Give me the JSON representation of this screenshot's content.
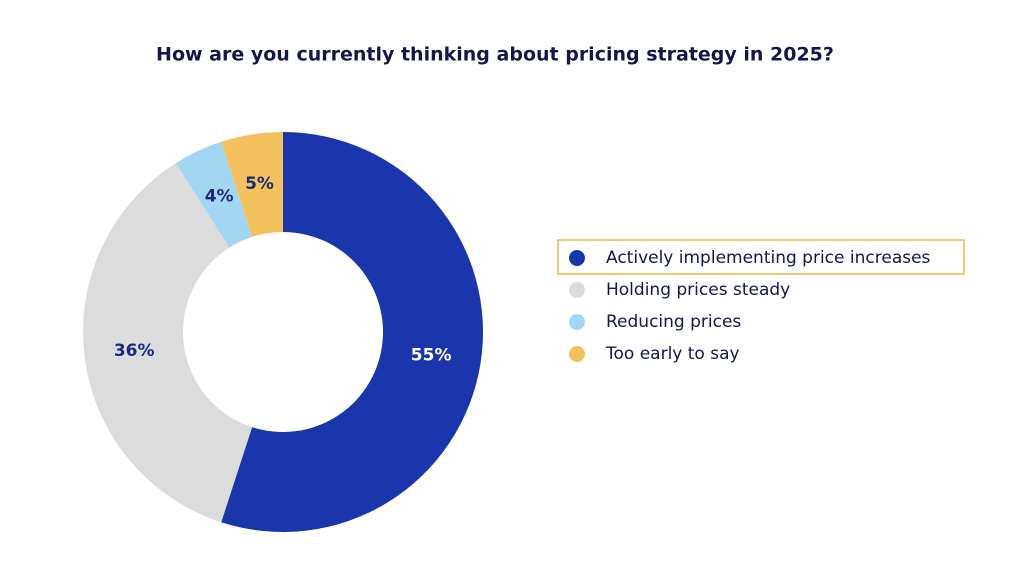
{
  "chart_data": {
    "type": "pie",
    "title": "How are you currently thinking about pricing strategy in 2025?",
    "categories": [
      "Actively implementing price increases",
      "Holding prices steady",
      "Reducing prices",
      "Too early to say"
    ],
    "values": [
      55,
      36,
      4,
      5
    ],
    "value_labels": [
      "55%",
      "36%",
      "4%",
      "5%"
    ],
    "colors": [
      "#1a36ac",
      "#dcdcdc",
      "#a3d6f2",
      "#f4c25c"
    ],
    "legend": "right"
  }
}
